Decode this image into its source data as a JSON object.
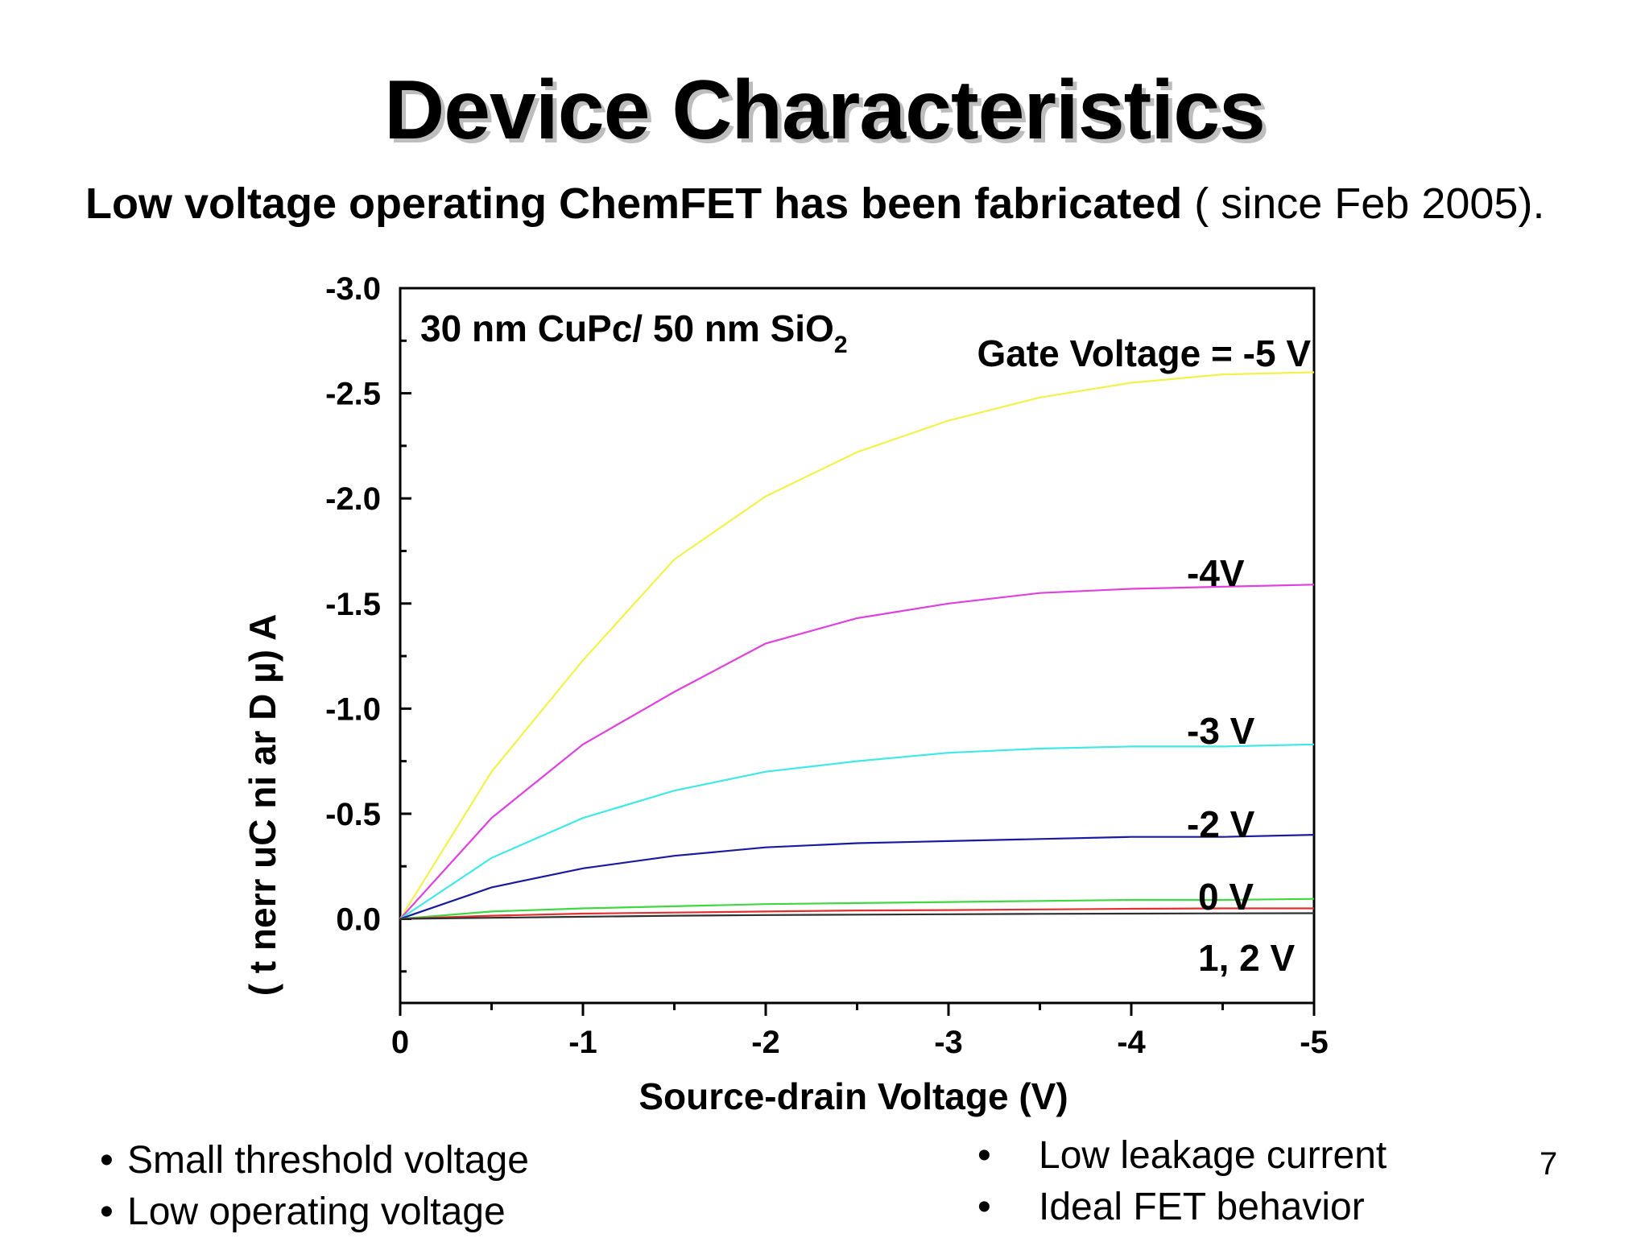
{
  "slide": {
    "title": "Device Characteristics",
    "subtitle_bold": "Low voltage operating ChemFET has been fabricated",
    "subtitle_normal": " ( since Feb 2005).",
    "bullets_left": [
      "Small threshold voltage",
      "Low operating voltage"
    ],
    "bullets_right": [
      "Low leakage current",
      "Ideal FET behavior"
    ],
    "bullet_glyph": "•",
    "page_number": "7"
  },
  "chart_data": {
    "type": "line",
    "xlabel": "Source-drain Voltage (V)",
    "ylabel": "( t nerr uC ni ar D µ) A",
    "xlim": [
      0,
      -5
    ],
    "ylim": [
      0.4,
      -3.0
    ],
    "x_ticks": [
      0,
      -1,
      -2,
      -3,
      -4,
      -5
    ],
    "x_tick_labels": [
      "0",
      "-1",
      "-2",
      "-3",
      "-4",
      "-5"
    ],
    "y_ticks": [
      0.0,
      -0.5,
      -1.0,
      -1.5,
      -2.0,
      -2.5,
      -3.0
    ],
    "y_tick_labels": [
      "0.0",
      "-0.5",
      "-1.0",
      "-1.5",
      "-2.0",
      "-2.5",
      "-3.0"
    ],
    "grid": false,
    "legend": "none",
    "annotation_device": "30 nm CuPc/ 50 nm SiO",
    "annotation_device_sub": "2",
    "x": [
      0,
      -0.5,
      -1,
      -1.5,
      -2,
      -2.5,
      -3,
      -3.5,
      -4,
      -4.5,
      -5
    ],
    "series": [
      {
        "label": "Gate Voltage = -5 V",
        "color": "#f2f24a",
        "values": [
          0,
          -0.7,
          -1.23,
          -1.71,
          -2.01,
          -2.22,
          -2.37,
          -2.48,
          -2.55,
          -2.59,
          -2.6
        ]
      },
      {
        "label": "-4V",
        "color": "#e040e0",
        "values": [
          0,
          -0.48,
          -0.83,
          -1.08,
          -1.31,
          -1.43,
          -1.5,
          -1.55,
          -1.57,
          -1.58,
          -1.59
        ]
      },
      {
        "label": "-3 V",
        "color": "#40e8e8",
        "values": [
          0,
          -0.29,
          -0.48,
          -0.61,
          -0.7,
          -0.75,
          -0.79,
          -0.81,
          -0.82,
          -0.82,
          -0.83
        ]
      },
      {
        "label": "-2 V",
        "color": "#1a1aa0",
        "values": [
          0,
          -0.15,
          -0.24,
          -0.3,
          -0.34,
          -0.36,
          -0.37,
          -0.38,
          -0.39,
          -0.39,
          -0.4
        ]
      },
      {
        "label": "0 V",
        "color": "#40d840",
        "values": [
          0,
          -0.035,
          -0.05,
          -0.06,
          -0.07,
          -0.075,
          -0.08,
          -0.085,
          -0.09,
          -0.09,
          -0.095
        ]
      },
      {
        "label": "1, 2 V",
        "color": "#e03030",
        "values": [
          0,
          -0.015,
          -0.025,
          -0.03,
          -0.035,
          -0.04,
          -0.042,
          -0.045,
          -0.048,
          -0.05,
          -0.05
        ]
      },
      {
        "label": "",
        "color": "#303030",
        "values": [
          0,
          -0.005,
          -0.01,
          -0.015,
          -0.018,
          -0.02,
          -0.022,
          -0.024,
          -0.025,
          -0.026,
          -0.027
        ]
      }
    ]
  }
}
